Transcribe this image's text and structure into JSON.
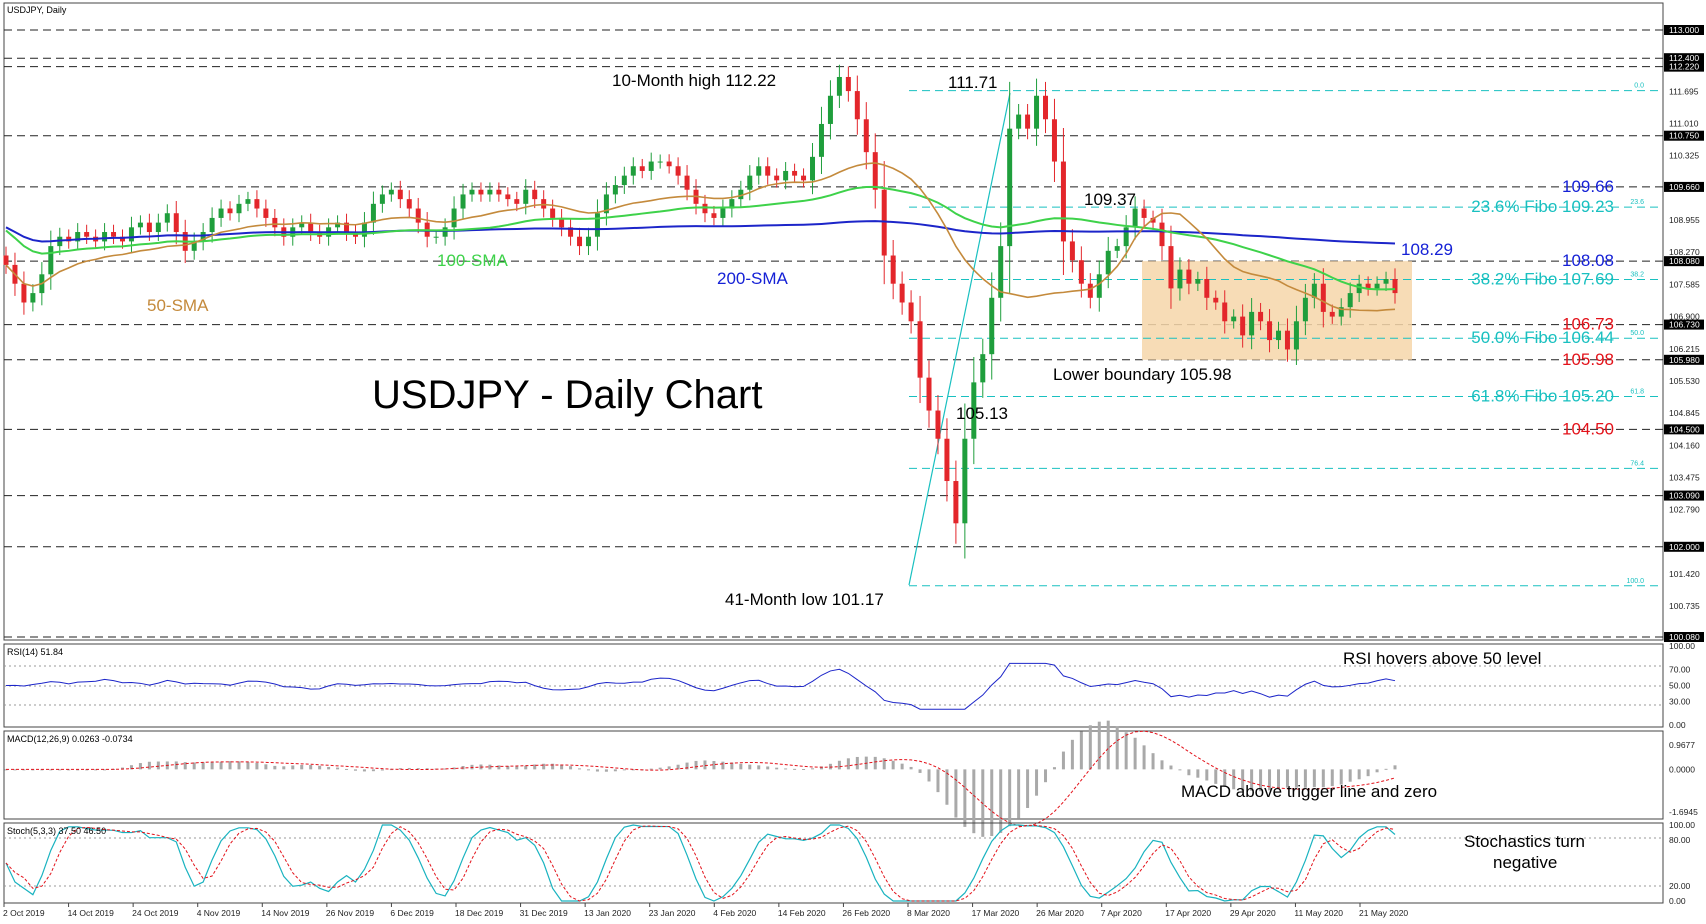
{
  "window": {
    "symbol_label": "USDJPY, Daily",
    "chart_title": "USDJPY - Daily Chart"
  },
  "colors": {
    "bull": "#1f9e3c",
    "bear": "#e3262b",
    "sma50": "#c48a3c",
    "sma100": "#3ed24a",
    "sma200": "#1c25c9",
    "fibo": "#19c0c0",
    "support_red": "#e3121a",
    "resistance_blue": "#1521d6",
    "range_box": "#f6d6a9",
    "rsi_line": "#1c25c9",
    "macd_hist": "#a9a9a9",
    "signal": "#e3121a",
    "stoch_main": "#19b3c0",
    "stoch_signal": "#e3121a"
  },
  "annotations": {
    "high_10m": "10-Month high 112.22",
    "peak_march": "111.71",
    "peak_april": "109.37",
    "low_march": "105.13",
    "low_41m": "41-Month low 101.17",
    "lower_boundary": "Lower boundary 105.98",
    "sma50": "50-SMA",
    "sma100": "100-SMA",
    "sma200": "200-SMA",
    "sma200_value": "108.29"
  },
  "right_labels": [
    {
      "text": "109.66",
      "price": 109.66,
      "kind": "resistance_blue"
    },
    {
      "text": "23.6% Fibo 109.23",
      "price": 109.23,
      "kind": "fibo"
    },
    {
      "text": "108.08",
      "price": 108.08,
      "kind": "resistance_blue"
    },
    {
      "text": "38.2% Fibo 107.69",
      "price": 107.69,
      "kind": "fibo"
    },
    {
      "text": "106.73",
      "price": 106.73,
      "kind": "support_red"
    },
    {
      "text": "50.0% Fibo 106.44",
      "price": 106.44,
      "kind": "fibo"
    },
    {
      "text": "105.98",
      "price": 105.98,
      "kind": "support_red"
    },
    {
      "text": "61.8% Fibo 105.20",
      "price": 105.2,
      "kind": "fibo"
    },
    {
      "text": "104.50",
      "price": 104.5,
      "kind": "support_red"
    }
  ],
  "y_axis": {
    "ticks": [
      "113.000",
      "112.400",
      "112.220",
      "111.695",
      "111.010",
      "110.325",
      "109.660",
      "108.955",
      "108.270",
      "108.080",
      "107.585",
      "106.900",
      "106.730",
      "106.215",
      "105.980",
      "105.530",
      "104.845",
      "104.500",
      "104.160",
      "103.475",
      "103.090",
      "102.790",
      "102.000",
      "101.420",
      "100.735",
      "100.080"
    ],
    "highlighted": [
      "113.000",
      "112.400",
      "112.220",
      "110.750",
      "109.660",
      "108.080",
      "106.730",
      "105.980",
      "104.500",
      "103.090",
      "102.000",
      "100.080"
    ]
  },
  "x_axis": {
    "labels": [
      "2 Oct 2019",
      "14 Oct 2019",
      "24 Oct 2019",
      "4 Nov 2019",
      "14 Nov 2019",
      "26 Nov 2019",
      "6 Dec 2019",
      "18 Dec 2019",
      "31 Dec 2019",
      "13 Jan 2020",
      "23 Jan 2020",
      "4 Feb 2020",
      "14 Feb 2020",
      "26 Feb 2020",
      "8 Mar 2020",
      "17 Mar 2020",
      "26 Mar 2020",
      "7 Apr 2020",
      "17 Apr 2020",
      "29 Apr 2020",
      "11 May 2020",
      "21 May 2020"
    ]
  },
  "fibo_level_tags": [
    "0.0",
    "23.6",
    "38.2",
    "50.0",
    "61.8",
    "76.4",
    "100.0"
  ],
  "panels": {
    "rsi": {
      "header": "RSI(14) 51.84",
      "comment": "RSI hovers above 50 level",
      "ticks": [
        "100.00",
        "70.00",
        "50.00",
        "30.00",
        "0.00"
      ]
    },
    "macd": {
      "header": "MACD(12,26,9) 0.0263 -0.0734",
      "comment": "MACD above trigger line and zero",
      "ticks": [
        "0.9677",
        "0.0000",
        "-1.6945"
      ]
    },
    "stoch": {
      "header": "Stoch(5,3,3) 37.50 46.50",
      "comment_line1": "Stochastics turn",
      "comment_line2": "negative",
      "ticks": [
        "100.00",
        "80.00",
        "20.00",
        "0.00"
      ]
    }
  },
  "chart_data": {
    "type": "candlestick",
    "title": "USDJPY - Daily Chart",
    "timeframe": "Daily",
    "period": {
      "start": "2 Oct 2019",
      "end": "end of May 2020"
    },
    "y_range": [
      100.08,
      113.0
    ],
    "key_points": [
      {
        "label": "10-Month high",
        "value": 112.22,
        "date": "Feb 2020"
      },
      {
        "label": "111.71",
        "value": 111.71,
        "date": "Mar 2020"
      },
      {
        "label": "109.37",
        "value": 109.37,
        "date": "Apr 2020"
      },
      {
        "label": "105.13",
        "value": 105.13,
        "date": "Mar 2020"
      },
      {
        "label": "41-Month low",
        "value": 101.17,
        "date": "9 Mar 2020"
      },
      {
        "label": "Lower boundary",
        "value": 105.98
      }
    ],
    "fibonacci": [
      {
        "level": "0.0",
        "value": 111.71
      },
      {
        "level": "23.6",
        "value": 109.23
      },
      {
        "level": "38.2",
        "value": 107.69
      },
      {
        "level": "50.0",
        "value": 106.44
      },
      {
        "level": "61.8",
        "value": 105.2
      },
      {
        "level": "76.4",
        "value": 103.67
      },
      {
        "level": "100.0",
        "value": 101.17
      }
    ],
    "horizontal_levels": [
      113.0,
      112.4,
      112.22,
      110.75,
      109.66,
      108.08,
      106.73,
      105.98,
      104.5,
      103.09,
      102.0,
      100.08
    ],
    "range_box": {
      "top": 108.08,
      "bottom": 105.98
    },
    "closes": [
      108.0,
      107.6,
      107.2,
      107.4,
      107.8,
      108.4,
      108.6,
      108.5,
      108.7,
      108.6,
      108.5,
      108.7,
      108.6,
      108.5,
      108.8,
      108.9,
      108.7,
      108.9,
      109.1,
      108.7,
      108.3,
      108.5,
      108.7,
      109.0,
      109.2,
      109.1,
      109.3,
      109.4,
      109.2,
      109.0,
      108.8,
      108.6,
      108.8,
      108.9,
      108.7,
      108.6,
      108.8,
      108.9,
      108.7,
      108.6,
      108.9,
      109.3,
      109.5,
      109.6,
      109.4,
      109.2,
      108.9,
      108.6,
      108.6,
      108.8,
      109.2,
      109.5,
      109.6,
      109.5,
      109.6,
      109.5,
      109.4,
      109.3,
      109.6,
      109.4,
      109.2,
      109.0,
      108.8,
      108.6,
      108.4,
      108.6,
      109.1,
      109.5,
      109.7,
      109.9,
      110.1,
      110.0,
      110.2,
      110.2,
      110.1,
      109.9,
      109.6,
      109.3,
      109.1,
      109.0,
      109.2,
      109.4,
      109.6,
      109.9,
      110.1,
      109.9,
      109.8,
      110.0,
      109.9,
      109.8,
      110.3,
      111.0,
      111.6,
      112.0,
      111.7,
      111.1,
      110.4,
      109.6,
      108.2,
      107.6,
      107.2,
      106.8,
      105.6,
      104.9,
      104.3,
      103.4,
      102.5,
      104.3,
      105.5,
      106.1,
      107.3,
      108.4,
      110.9,
      111.2,
      110.9,
      111.6,
      111.1,
      110.2,
      108.5,
      108.1,
      107.6,
      107.3,
      107.8,
      108.3,
      108.4,
      108.8,
      109.2,
      109.0,
      108.9,
      108.4,
      107.5,
      107.9,
      107.6,
      107.7,
      107.3,
      107.2,
      106.8,
      106.9,
      106.5,
      107.0,
      106.8,
      106.4,
      106.6,
      106.2,
      106.8,
      107.3,
      107.6,
      107.0,
      106.9,
      107.1,
      107.4,
      107.6,
      107.5,
      107.6,
      107.7,
      107.4
    ],
    "series": [
      {
        "name": "50-SMA"
      },
      {
        "name": "100-SMA"
      },
      {
        "name": "200-SMA",
        "last_value": 108.29
      }
    ],
    "rsi": {
      "period": 14,
      "last": 51.84,
      "levels": [
        70,
        50,
        30
      ],
      "range": [
        0,
        100
      ]
    },
    "macd": {
      "params": "12,26,9",
      "main": 0.0263,
      "signal": -0.0734,
      "range": [
        -1.6945,
        0.9677
      ]
    },
    "stochastic": {
      "params": "5,3,3",
      "k": 37.5,
      "d": 46.5,
      "levels": [
        80,
        20
      ],
      "range": [
        0,
        100
      ]
    }
  }
}
